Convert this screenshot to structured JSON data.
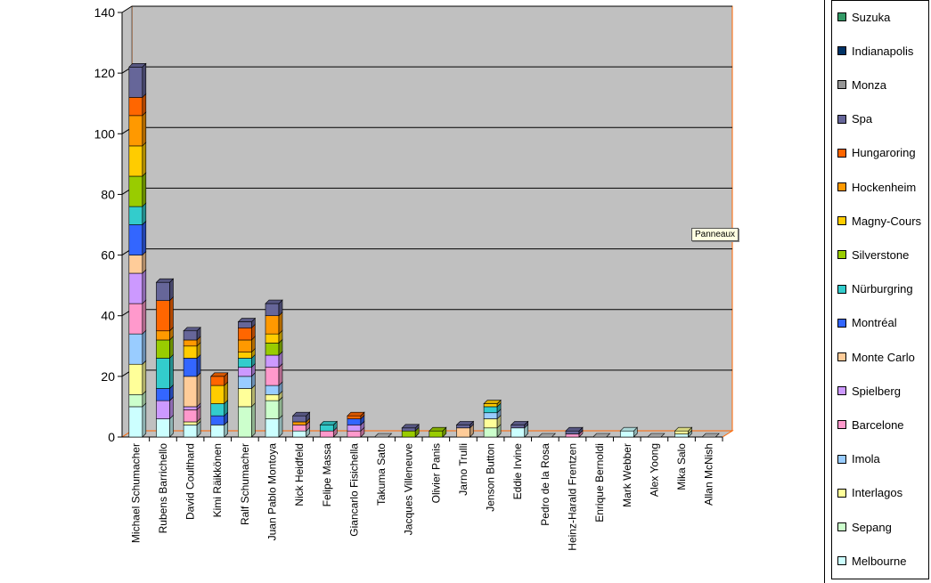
{
  "tooltip": "Panneaux",
  "chart_data": {
    "type": "bar",
    "stacked": true,
    "three_d": true,
    "ylim": [
      0,
      140
    ],
    "yticks": [
      0,
      20,
      40,
      60,
      80,
      100,
      120,
      140
    ],
    "grid": true,
    "legend_position": "right",
    "categories": [
      "Michael Schumacher",
      "Rubens Barrichello",
      "David Coulthard",
      "Kimi Räikkönen",
      "Ralf Schumacher",
      "Juan Pablo Montoya",
      "Nick Heidfeld",
      "Felipe Massa",
      "Giancarlo Fisichella",
      "Takuma Sato",
      "Jacques Villeneuve",
      "Olivier Panis",
      "Jarno Trulli",
      "Jenson Button",
      "Eddie Irvine",
      "Pedro de la Rosa",
      "Heinz-Harald Frentzen",
      "Enrique Bernoldi",
      "Mark Webber",
      "Alex Yoong",
      "Mika Salo",
      "Allan McNish"
    ],
    "series": [
      {
        "name": "Melbourne",
        "color": "#ccffff",
        "values": [
          10,
          6,
          4,
          4,
          0,
          6,
          2,
          0,
          0,
          0,
          0,
          0,
          0,
          0,
          3,
          0,
          0,
          0,
          2,
          0,
          1,
          0
        ]
      },
      {
        "name": "Sepang",
        "color": "#ccffcc",
        "values": [
          4,
          0,
          0,
          0,
          10,
          6,
          0,
          0,
          0,
          0,
          0,
          0,
          0,
          3,
          0,
          0,
          0,
          0,
          0,
          0,
          0,
          0
        ]
      },
      {
        "name": "Interlagos",
        "color": "#ffff99",
        "values": [
          10,
          0,
          1,
          0,
          6,
          2,
          0,
          0,
          0,
          0,
          0,
          0,
          0,
          3,
          0,
          0,
          0,
          0,
          0,
          0,
          1,
          0
        ]
      },
      {
        "name": "Imola",
        "color": "#99ccff",
        "values": [
          10,
          0,
          0,
          0,
          4,
          3,
          0,
          0,
          0,
          0,
          0,
          0,
          0,
          2,
          0,
          0,
          0,
          0,
          0,
          0,
          0,
          0
        ]
      },
      {
        "name": "Barcelone",
        "color": "#ff99cc",
        "values": [
          10,
          0,
          4,
          0,
          0,
          6,
          2,
          2,
          2,
          0,
          0,
          0,
          0,
          0,
          0,
          0,
          1,
          0,
          0,
          0,
          0,
          0
        ]
      },
      {
        "name": "Spielberg",
        "color": "#cc99ff",
        "values": [
          10,
          6,
          1,
          0,
          3,
          4,
          0,
          0,
          2,
          0,
          0,
          0,
          0,
          0,
          0,
          0,
          0,
          0,
          0,
          0,
          0,
          0
        ]
      },
      {
        "name": "Monte Carlo",
        "color": "#ffcc99",
        "values": [
          6,
          0,
          10,
          0,
          0,
          0,
          0,
          0,
          0,
          0,
          0,
          0,
          3,
          0,
          0,
          0,
          0,
          0,
          0,
          0,
          0,
          0
        ]
      },
      {
        "name": "Montréal",
        "color": "#3366ff",
        "values": [
          10,
          4,
          6,
          3,
          0,
          0,
          0,
          0,
          2,
          0,
          0,
          0,
          0,
          0,
          0,
          0,
          0,
          0,
          0,
          0,
          0,
          0
        ]
      },
      {
        "name": "Nürburgring",
        "color": "#33cccc",
        "values": [
          6,
          10,
          0,
          4,
          3,
          0,
          0,
          2,
          0,
          0,
          0,
          0,
          0,
          2,
          0,
          0,
          0,
          0,
          0,
          0,
          0,
          0
        ]
      },
      {
        "name": "Silverstone",
        "color": "#99cc00",
        "values": [
          10,
          6,
          0,
          0,
          0,
          4,
          0,
          0,
          0,
          0,
          2,
          2,
          0,
          0,
          0,
          0,
          0,
          0,
          0,
          0,
          0,
          0
        ]
      },
      {
        "name": "Magny-Cours",
        "color": "#ffcc00",
        "values": [
          10,
          0,
          4,
          6,
          2,
          3,
          0,
          0,
          0,
          0,
          0,
          0,
          0,
          1,
          0,
          0,
          0,
          0,
          0,
          0,
          0,
          0
        ]
      },
      {
        "name": "Hockenheim",
        "color": "#ff9900",
        "values": [
          10,
          3,
          2,
          0,
          4,
          6,
          1,
          0,
          0,
          0,
          0,
          0,
          0,
          0,
          0,
          0,
          0,
          0,
          0,
          0,
          0,
          0
        ]
      },
      {
        "name": "Hungaroring",
        "color": "#ff6600",
        "values": [
          6,
          10,
          0,
          3,
          4,
          0,
          0,
          0,
          1,
          0,
          0,
          0,
          0,
          0,
          0,
          0,
          0,
          0,
          0,
          0,
          0,
          0
        ]
      },
      {
        "name": "Spa",
        "color": "#666699",
        "values": [
          10,
          6,
          3,
          0,
          2,
          4,
          2,
          0,
          0,
          0,
          1,
          0,
          1,
          0,
          1,
          0,
          1,
          0,
          0,
          0,
          0,
          0
        ]
      },
      {
        "name": "Monza",
        "color": "#969696",
        "values": [
          0,
          0,
          0,
          0,
          0,
          0,
          0,
          0,
          0,
          0,
          0,
          0,
          0,
          0,
          0,
          0,
          0,
          0,
          0,
          0,
          0,
          0
        ]
      },
      {
        "name": "Indianapolis",
        "color": "#003366",
        "values": [
          0,
          0,
          0,
          0,
          0,
          0,
          0,
          0,
          0,
          0,
          0,
          0,
          0,
          0,
          0,
          0,
          0,
          0,
          0,
          0,
          0,
          0
        ]
      },
      {
        "name": "Suzuka",
        "color": "#339966",
        "values": [
          0,
          0,
          0,
          0,
          0,
          0,
          0,
          0,
          0,
          0,
          0,
          0,
          0,
          0,
          0,
          0,
          0,
          0,
          0,
          0,
          0,
          0
        ]
      }
    ]
  }
}
